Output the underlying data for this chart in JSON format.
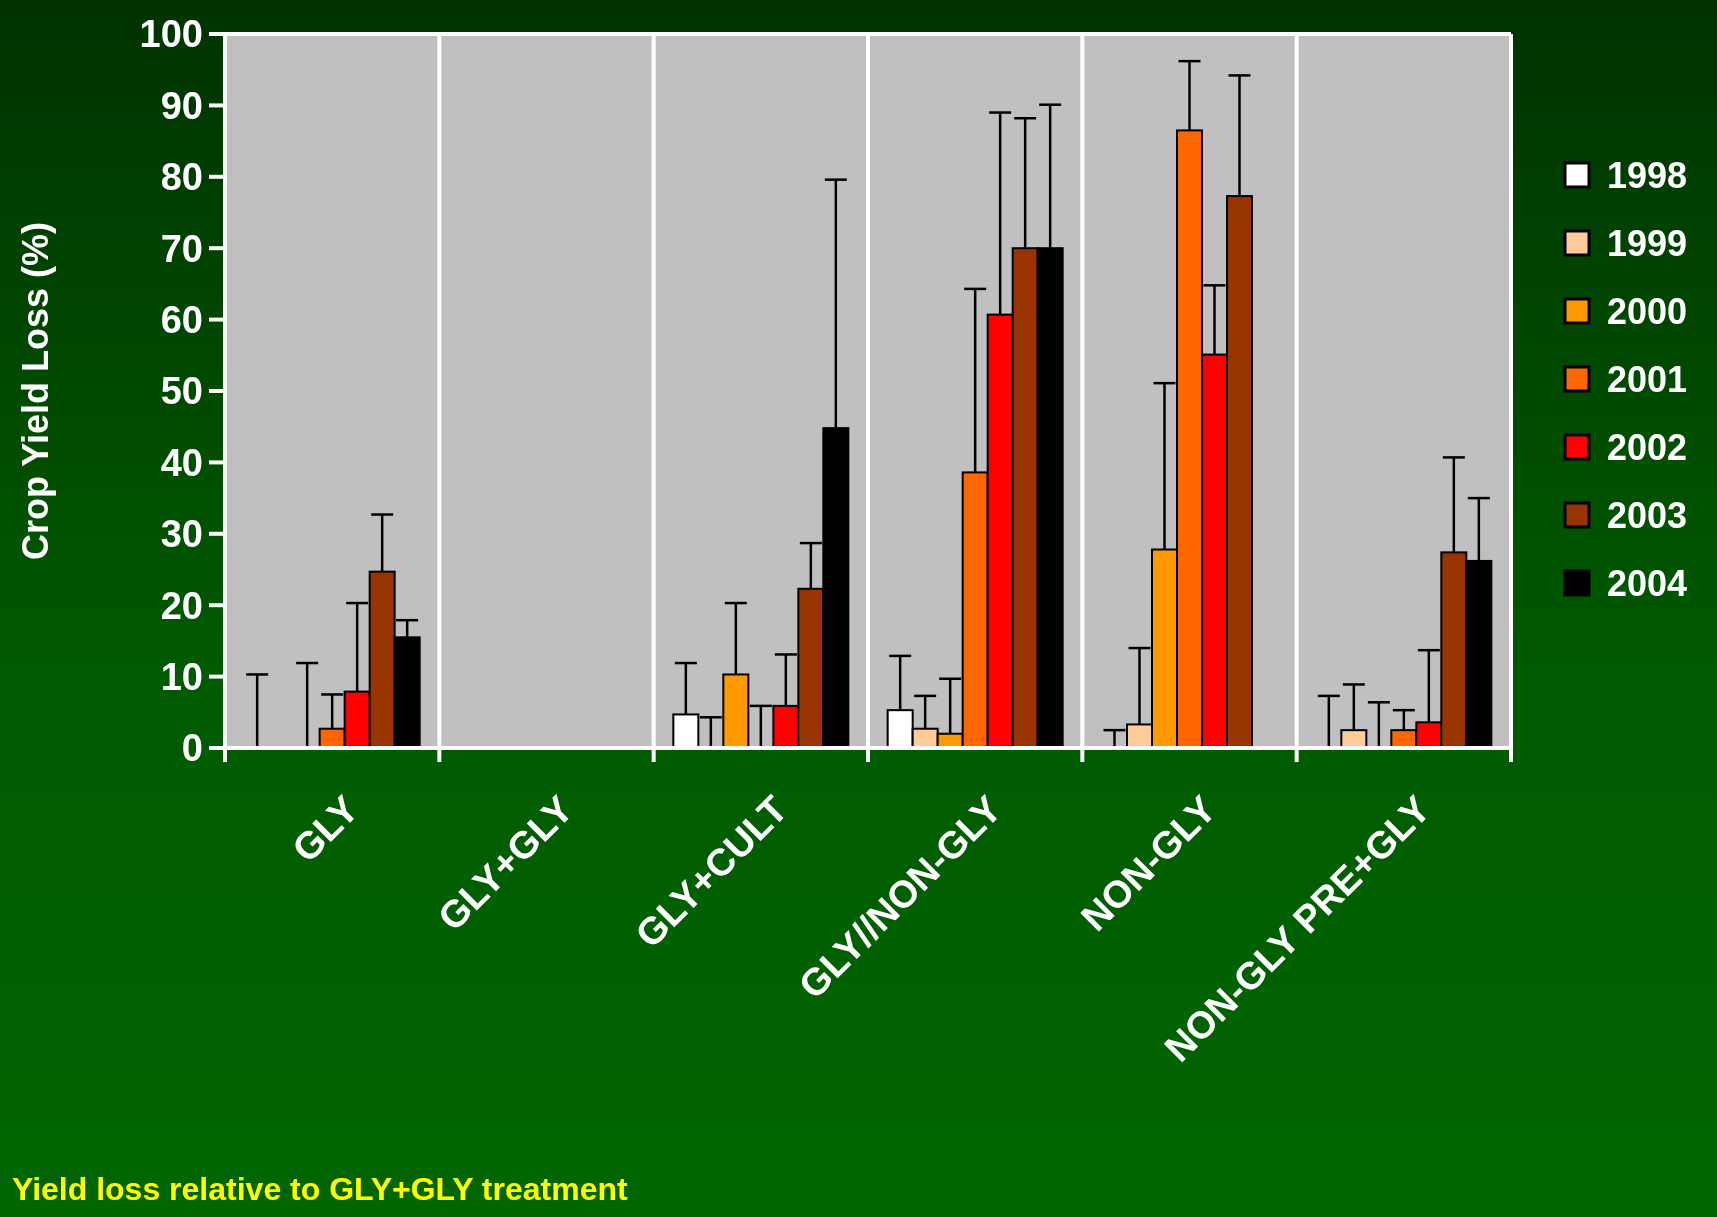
{
  "chart_data": {
    "type": "bar",
    "ylabel": "Crop Yield Loss (%)",
    "categories": [
      "GLY",
      "GLY+GLY",
      "GLY+CULT",
      "GLY//NON-GLY",
      "NON-GLY",
      "NON-GLY PRE+GLY"
    ],
    "series": [
      {
        "name": "1998",
        "color": "#ffffff",
        "values": [
          0,
          null,
          4.7,
          5.3,
          0,
          0
        ],
        "errors": [
          [
            0,
            10.3
          ],
          null,
          [
            4.7,
            11.9
          ],
          [
            5.3,
            12.9
          ],
          [
            0,
            2.5
          ],
          [
            0,
            7.3
          ]
        ]
      },
      {
        "name": "1999",
        "color": "#ffcc99",
        "values": [
          null,
          null,
          0,
          2.7,
          3.3,
          2.5
        ],
        "errors": [
          null,
          null,
          [
            0,
            4.3
          ],
          [
            2.7,
            7.3
          ],
          [
            3.3,
            14.0
          ],
          [
            2.5,
            8.9
          ]
        ]
      },
      {
        "name": "2000",
        "color": "#ff9900",
        "values": [
          0,
          null,
          10.3,
          2.0,
          27.8,
          0
        ],
        "errors": [
          [
            0,
            11.9
          ],
          null,
          [
            10.3,
            20.3
          ],
          [
            2.0,
            9.7
          ],
          [
            27.8,
            51.1
          ],
          [
            0,
            6.4
          ]
        ]
      },
      {
        "name": "2001",
        "color": "#ff6600",
        "values": [
          2.7,
          null,
          0,
          38.6,
          86.5,
          2.5
        ],
        "errors": [
          [
            2.7,
            7.5
          ],
          null,
          [
            0,
            5.9
          ],
          [
            38.6,
            64.3
          ],
          [
            86.5,
            96.2
          ],
          [
            2.5,
            5.3
          ]
        ]
      },
      {
        "name": "2002",
        "color": "#ff0000",
        "values": [
          7.9,
          null,
          5.9,
          60.7,
          55.1,
          3.6
        ],
        "errors": [
          [
            7.9,
            20.3
          ],
          null,
          [
            5.9,
            13.1
          ],
          [
            60.7,
            89.0
          ],
          [
            55.1,
            64.8
          ],
          [
            3.6,
            13.7
          ]
        ]
      },
      {
        "name": "2003",
        "color": "#993300",
        "values": [
          24.7,
          null,
          22.3,
          70.0,
          77.3,
          27.4
        ],
        "errors": [
          [
            24.7,
            32.7
          ],
          null,
          [
            22.3,
            28.7
          ],
          [
            70.0,
            88.2
          ],
          [
            77.3,
            94.2
          ],
          [
            27.4,
            40.7
          ]
        ]
      },
      {
        "name": "2004",
        "color": "#000000",
        "values": [
          15.5,
          null,
          44.8,
          70.0,
          null,
          26.2
        ],
        "errors": [
          [
            15.5,
            17.9
          ],
          null,
          [
            44.8,
            79.6
          ],
          [
            70.0,
            90.1
          ],
          null,
          [
            26.2,
            35.0
          ]
        ]
      }
    ],
    "ylim": [
      0,
      100
    ],
    "yticks": [
      0,
      10,
      20,
      30,
      40,
      50,
      60,
      70,
      80,
      90,
      100
    ],
    "grid": "x",
    "legend": "right",
    "annotations": [
      "Yield loss relative to GLY+GLY treatment"
    ]
  }
}
